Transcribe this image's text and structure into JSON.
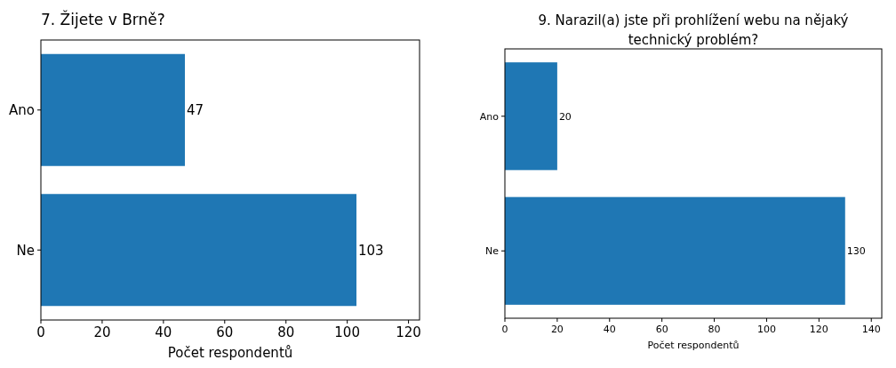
{
  "chart_data": [
    {
      "type": "bar",
      "orientation": "horizontal",
      "title": "7. Žijete v Brně?",
      "xlabel": "Počet respondentů",
      "categories": [
        "Ano",
        "Ne"
      ],
      "values": [
        47,
        103
      ],
      "color": "#1f77b4",
      "xlim": [
        0,
        123.6
      ],
      "xticks": [
        0,
        20,
        40,
        60,
        80,
        100,
        120
      ],
      "data_labels": true
    },
    {
      "type": "bar",
      "orientation": "horizontal",
      "title": "9. Narazil(a) jste při prohlížení webu na nějaký\ntechnický problém?",
      "xlabel": "Počet respondentů",
      "categories": [
        "Ano",
        "Ne"
      ],
      "values": [
        20,
        130
      ],
      "color": "#1f77b4",
      "xlim": [
        0,
        144
      ],
      "xticks": [
        0,
        20,
        40,
        60,
        80,
        100,
        120,
        140
      ],
      "data_labels": true
    }
  ]
}
